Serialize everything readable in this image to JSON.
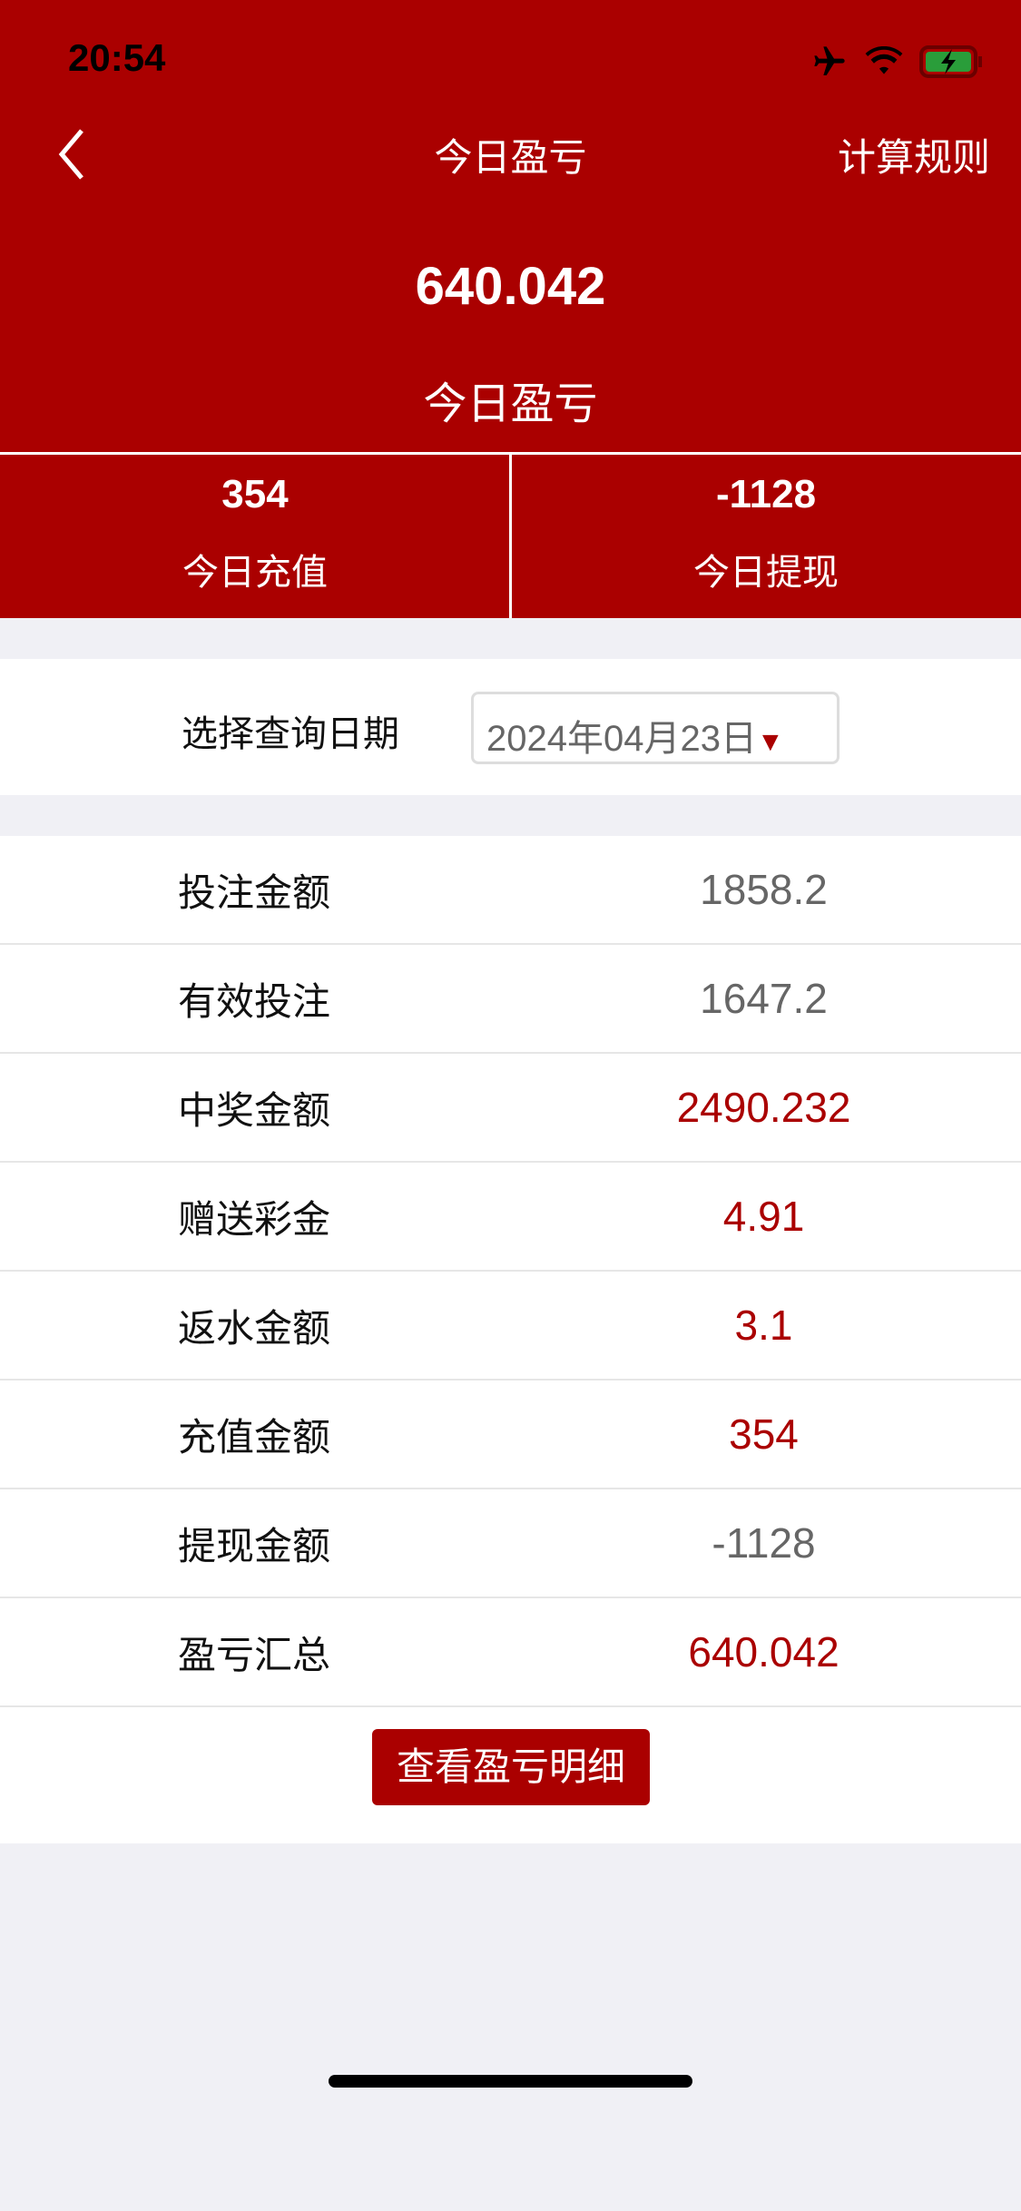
{
  "status_bar": {
    "time": "20:54",
    "icons": [
      "airplane-icon",
      "wifi-icon",
      "battery-charging-icon"
    ]
  },
  "nav": {
    "title": "今日盈亏",
    "right_label": "计算规则"
  },
  "summary": {
    "value": "640.042",
    "label": "今日盈亏"
  },
  "stats": [
    {
      "value": "354",
      "label": "今日充值"
    },
    {
      "value": "-1128",
      "label": "今日提现"
    }
  ],
  "date_filter": {
    "label": "选择查询日期",
    "value": "2024年04月23日"
  },
  "rows": [
    {
      "label": "投注金额",
      "value": "1858.2",
      "color": "#666666"
    },
    {
      "label": "有效投注",
      "value": "1647.2",
      "color": "#666666"
    },
    {
      "label": "中奖金额",
      "value": "2490.232",
      "color": "#aa0000"
    },
    {
      "label": "赠送彩金",
      "value": "4.91",
      "color": "#aa0000"
    },
    {
      "label": "返水金额",
      "value": "3.1",
      "color": "#aa0000"
    },
    {
      "label": "充值金额",
      "value": "354",
      "color": "#aa0000"
    },
    {
      "label": "提现金额",
      "value": "-1128",
      "color": "#666666"
    },
    {
      "label": "盈亏汇总",
      "value": "640.042",
      "color": "#aa0000"
    }
  ],
  "detail_button": "查看盈亏明细",
  "colors": {
    "brand": "#aa0000",
    "background": "#f0f0f5"
  }
}
